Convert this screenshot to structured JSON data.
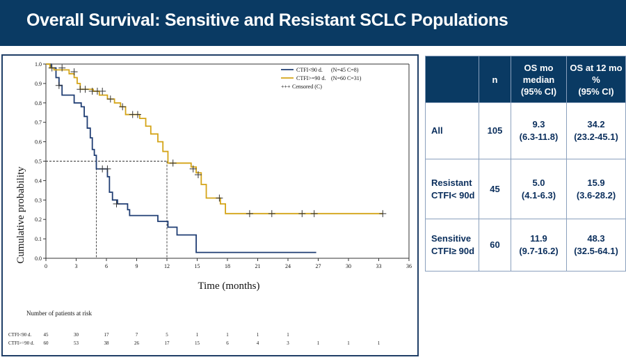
{
  "title": "Overall Survival: Sensitive and Resistant SCLC Populations",
  "chart_data": {
    "type": "line",
    "xlabel": "Time (months)",
    "ylabel": "Cumulative probability",
    "xlim": [
      0,
      36
    ],
    "ylim": [
      0.0,
      1.0
    ],
    "xticks": [
      "0",
      "3",
      "6",
      "9",
      "12",
      "15",
      "18",
      "21",
      "24",
      "27",
      "30",
      "33",
      "36"
    ],
    "yticks": [
      "0.0",
      "0.1",
      "0.2",
      "0.3",
      "0.4",
      "0.5",
      "0.6",
      "0.7",
      "0.8",
      "0.9",
      "1.0"
    ],
    "grid": false,
    "legend_position": "top-right",
    "legend_censored": "Censored (C)",
    "series": [
      {
        "name": "CTFI<90 d.",
        "legend_note": "(N=45 C=8)",
        "color": "#1f3d73",
        "steps": [
          [
            0,
            1.0
          ],
          [
            0.5,
            0.98
          ],
          [
            1.0,
            0.93
          ],
          [
            1.3,
            0.89
          ],
          [
            1.6,
            0.84
          ],
          [
            2.8,
            0.8
          ],
          [
            3.5,
            0.78
          ],
          [
            3.8,
            0.73
          ],
          [
            4.1,
            0.67
          ],
          [
            4.4,
            0.62
          ],
          [
            4.6,
            0.56
          ],
          [
            4.8,
            0.53
          ],
          [
            5.0,
            0.46
          ],
          [
            6.1,
            0.42
          ],
          [
            6.3,
            0.34
          ],
          [
            6.6,
            0.3
          ],
          [
            7.1,
            0.28
          ],
          [
            8.1,
            0.25
          ],
          [
            8.3,
            0.22
          ],
          [
            11.1,
            0.19
          ],
          [
            12.1,
            0.16
          ],
          [
            13.0,
            0.12
          ],
          [
            14.9,
            0.03
          ],
          [
            26.8,
            0.03
          ]
        ],
        "censored": [
          [
            1.3,
            0.89
          ],
          [
            5.6,
            0.46
          ],
          [
            6.1,
            0.46
          ],
          [
            7.0,
            0.28
          ]
        ]
      },
      {
        "name": "CTFI>=90 d.",
        "legend_note": "(N=60 C=31)",
        "color": "#d4a417",
        "steps": [
          [
            0,
            1.0
          ],
          [
            0.4,
            0.98
          ],
          [
            0.8,
            0.97
          ],
          [
            2.3,
            0.95
          ],
          [
            2.8,
            0.93
          ],
          [
            3.1,
            0.9
          ],
          [
            3.4,
            0.87
          ],
          [
            4.7,
            0.86
          ],
          [
            5.3,
            0.84
          ],
          [
            6.1,
            0.82
          ],
          [
            6.8,
            0.8
          ],
          [
            7.4,
            0.78
          ],
          [
            7.9,
            0.74
          ],
          [
            9.3,
            0.72
          ],
          [
            9.9,
            0.68
          ],
          [
            10.4,
            0.64
          ],
          [
            11.1,
            0.6
          ],
          [
            11.6,
            0.55
          ],
          [
            12.1,
            0.49
          ],
          [
            14.4,
            0.47
          ],
          [
            14.9,
            0.44
          ],
          [
            15.4,
            0.38
          ],
          [
            15.9,
            0.31
          ],
          [
            17.3,
            0.28
          ],
          [
            17.8,
            0.23
          ],
          [
            33.4,
            0.23
          ]
        ],
        "censored": [
          [
            0.6,
            0.98
          ],
          [
            1.6,
            0.98
          ],
          [
            2.8,
            0.96
          ],
          [
            3.4,
            0.87
          ],
          [
            3.9,
            0.87
          ],
          [
            4.6,
            0.86
          ],
          [
            5.1,
            0.86
          ],
          [
            5.6,
            0.86
          ],
          [
            6.4,
            0.82
          ],
          [
            7.6,
            0.78
          ],
          [
            8.6,
            0.74
          ],
          [
            9.1,
            0.74
          ],
          [
            12.6,
            0.49
          ],
          [
            14.6,
            0.46
          ],
          [
            15.1,
            0.43
          ],
          [
            17.2,
            0.31
          ],
          [
            20.2,
            0.23
          ],
          [
            22.4,
            0.23
          ],
          [
            25.4,
            0.23
          ],
          [
            26.6,
            0.23
          ],
          [
            33.4,
            0.23
          ]
        ]
      }
    ],
    "median_reference_lines": [
      5.0,
      12.0
    ],
    "median_reference_y": 0.5
  },
  "risk_table": {
    "title": "Number of patients at risk",
    "rows": [
      {
        "label": "CTFI<90 d.",
        "values": [
          "45",
          "30",
          "17",
          "7",
          "5",
          "1",
          "1",
          "1",
          "1"
        ]
      },
      {
        "label": "CTFI>=90 d.",
        "values": [
          "60",
          "53",
          "38",
          "26",
          "17",
          "15",
          "6",
          "4",
          "3",
          "1",
          "1",
          "1"
        ]
      }
    ]
  },
  "summary_table": {
    "headers": [
      "",
      "n",
      "OS mo\nmedian\n(95% CI)",
      "OS at 12 mo\n%\n(95% CI)"
    ],
    "rows": [
      {
        "label": "All",
        "n": "105",
        "median": "9.3\n(6.3-11.8)",
        "os12": "34.2\n(23.2-45.1)"
      },
      {
        "label": "Resistant\nCTFI< 90d",
        "n": "45",
        "median": "5.0\n(4.1-6.3)",
        "os12": "15.9\n(3.6-28.2)"
      },
      {
        "label": "Sensitive\nCTFI≥ 90d",
        "n": "60",
        "median": "11.9\n(9.7-16.2)",
        "os12": "48.3\n(32.5-64.1)"
      }
    ]
  }
}
